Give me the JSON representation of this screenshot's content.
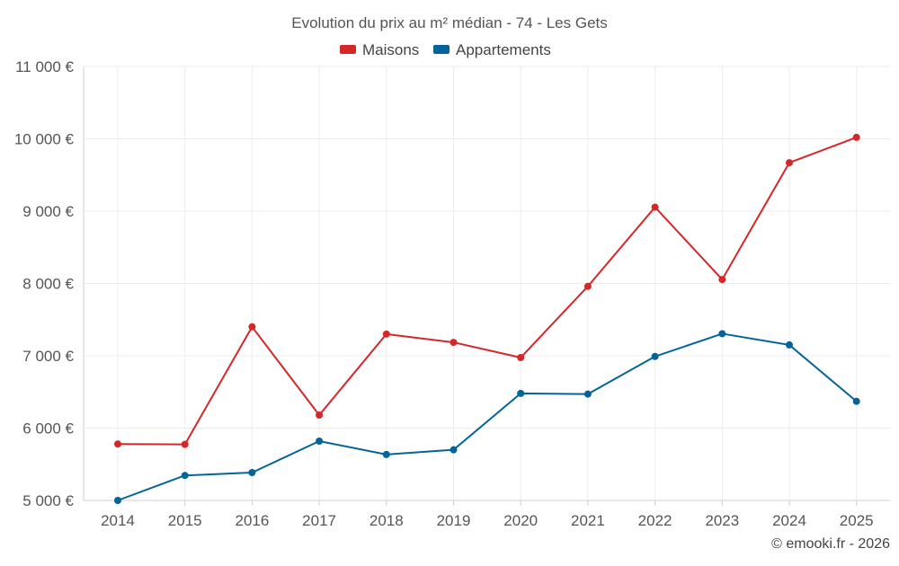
{
  "chart_data": {
    "type": "line",
    "title": "Evolution du prix au m² médian - 74 - Les Gets",
    "categories": [
      "2014",
      "2015",
      "2016",
      "2017",
      "2018",
      "2019",
      "2020",
      "2021",
      "2022",
      "2023",
      "2024",
      "2025"
    ],
    "series": [
      {
        "name": "Maisons",
        "color": "#d62728",
        "values": [
          5780,
          5775,
          7400,
          6180,
          7300,
          7185,
          6975,
          7960,
          9055,
          8055,
          9670,
          10020
        ]
      },
      {
        "name": "Appartements",
        "color": "#03649a",
        "values": [
          5000,
          5345,
          5385,
          5820,
          5635,
          5700,
          6480,
          6470,
          6990,
          7305,
          7150,
          6370
        ]
      }
    ],
    "ylim": [
      5000,
      11000
    ],
    "yticks": [
      5000,
      6000,
      7000,
      8000,
      9000,
      10000,
      11000
    ],
    "ytick_labels": [
      "5 000 €",
      "6 000 €",
      "7 000 €",
      "8 000 €",
      "9 000 €",
      "10 000 €",
      "11 000 €"
    ],
    "legend_position": "top-center",
    "grid": true
  },
  "credit": "© emooki.fr - 2026"
}
